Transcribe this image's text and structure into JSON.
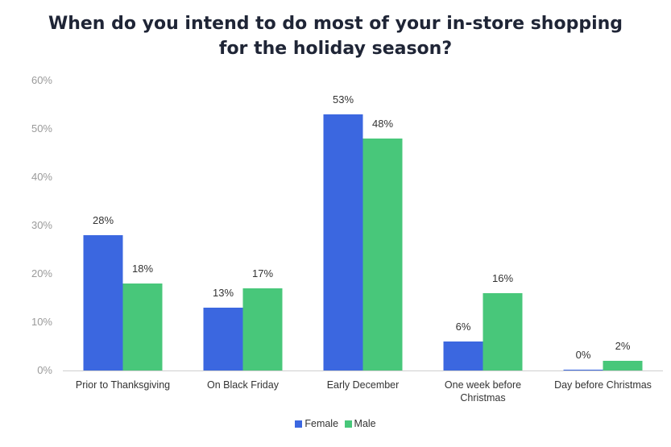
{
  "chart_data": {
    "type": "bar",
    "title_line1": "When do you intend to do most of your in-store shopping",
    "title_line2": "for the holiday season?",
    "categories": [
      [
        "Prior to Thanksgiving"
      ],
      [
        "On Black Friday"
      ],
      [
        "Early December"
      ],
      [
        "One week  before",
        "Christmas"
      ],
      [
        "Day before Christmas"
      ]
    ],
    "series": [
      {
        "name": "Female",
        "color": "#3b67e0",
        "values": [
          28,
          13,
          53,
          6,
          0
        ],
        "labels": [
          "28%",
          "13%",
          "53%",
          "6%",
          "0%"
        ]
      },
      {
        "name": "Male",
        "color": "#48c77a",
        "values": [
          18,
          17,
          48,
          16,
          2
        ],
        "labels": [
          "18%",
          "17%",
          "48%",
          "16%",
          "2%"
        ]
      }
    ],
    "ylim": [
      0,
      60
    ],
    "yticks": [
      "0%",
      "10%",
      "20%",
      "30%",
      "40%",
      "50%",
      "60%"
    ],
    "grid": false,
    "legend_position": "bottom-center"
  }
}
